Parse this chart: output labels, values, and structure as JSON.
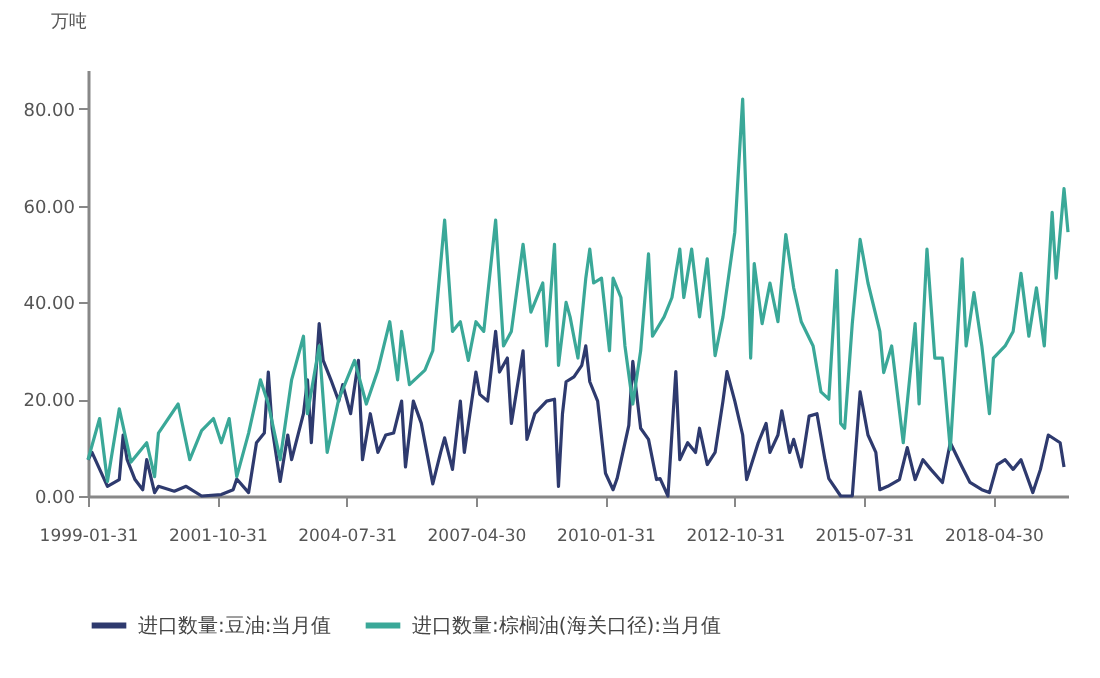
{
  "chart_data": {
    "type": "line",
    "ylabel": "万吨",
    "xlim": [
      "1999-01",
      "2019-11"
    ],
    "xticks": [
      {
        "value": "1999-01",
        "label": "1999-01-31"
      },
      {
        "value": "2001-10",
        "label": "2001-10-31"
      },
      {
        "value": "2004-07",
        "label": "2004-07-31"
      },
      {
        "value": "2007-04",
        "label": "2007-04-30"
      },
      {
        "value": "2010-01",
        "label": "2010-01-31"
      },
      {
        "value": "2012-10",
        "label": "2012-10-31"
      },
      {
        "value": "2015-07",
        "label": "2015-07-31"
      },
      {
        "value": "2018-04",
        "label": "2018-04-30"
      }
    ],
    "ylim": [
      0,
      88
    ],
    "yticks": [
      {
        "value": 0,
        "label": "0.00"
      },
      {
        "value": 20,
        "label": "20.00"
      },
      {
        "value": 40,
        "label": "40.00"
      },
      {
        "value": 60,
        "label": "60.00"
      },
      {
        "value": 80,
        "label": "80.00"
      }
    ],
    "grid": false,
    "legend": "bottom",
    "marker": "none",
    "line_style": "solid",
    "series": [
      {
        "name": "进口数量:豆油:当月值",
        "color": "#2e3a6e",
        "x": [
          "1999-01",
          "1999-02",
          "1999-06",
          "1999-09",
          "1999-10",
          "1999-11",
          "2000-01",
          "2000-03",
          "2000-04",
          "2000-06",
          "2000-07",
          "2000-11",
          "2001-02",
          "2001-06",
          "2001-11",
          "2002-02",
          "2002-03",
          "2002-06",
          "2002-08",
          "2002-10",
          "2002-11",
          "2002-12",
          "2003-02",
          "2003-04",
          "2003-05",
          "2003-08",
          "2003-09",
          "2003-10",
          "2003-12",
          "2004-01",
          "2004-03",
          "2004-05",
          "2004-06",
          "2004-08",
          "2004-10",
          "2004-11",
          "2005-01",
          "2005-03",
          "2005-05",
          "2005-07",
          "2005-09",
          "2005-10",
          "2005-12",
          "2006-02",
          "2006-05",
          "2006-07",
          "2006-08",
          "2006-10",
          "2006-12",
          "2007-01",
          "2007-04",
          "2007-05",
          "2007-07",
          "2007-09",
          "2007-10",
          "2007-12",
          "2008-01",
          "2008-04",
          "2008-05",
          "2008-07",
          "2008-10",
          "2008-12",
          "2009-01",
          "2009-02",
          "2009-03",
          "2009-05",
          "2009-07",
          "2009-08",
          "2009-09",
          "2009-11",
          "2010-01",
          "2010-03",
          "2010-04",
          "2010-07",
          "2010-08",
          "2010-10",
          "2010-12",
          "2011-02",
          "2011-03",
          "2011-05",
          "2011-07",
          "2011-08",
          "2011-10",
          "2011-12",
          "2012-01",
          "2012-03",
          "2012-05",
          "2012-07",
          "2012-08",
          "2012-10",
          "2012-12",
          "2013-01",
          "2013-04",
          "2013-06",
          "2013-07",
          "2013-09",
          "2013-10",
          "2013-12",
          "2014-01",
          "2014-03",
          "2014-05",
          "2014-07",
          "2014-09",
          "2014-10",
          "2015-01",
          "2015-04",
          "2015-06",
          "2015-08",
          "2015-10",
          "2015-11",
          "2016-01",
          "2016-04",
          "2016-06",
          "2016-08",
          "2016-10",
          "2016-12",
          "2017-03",
          "2017-05",
          "2017-08",
          "2017-10",
          "2018-01",
          "2018-03",
          "2018-05",
          "2018-07",
          "2018-09",
          "2018-11",
          "2019-02",
          "2019-04",
          "2019-06",
          "2019-09",
          "2019-10"
        ],
        "values": [
          7.5,
          9,
          2,
          3.4,
          12.6,
          7.5,
          3.4,
          1.3,
          7.5,
          0.7,
          2,
          1,
          2,
          0,
          0.3,
          1.3,
          3.5,
          0.7,
          11,
          13,
          25.6,
          14,
          3,
          12.6,
          7.5,
          17,
          24,
          11,
          35.6,
          28,
          24,
          19.6,
          23,
          17,
          28,
          7.5,
          17,
          9,
          12.6,
          13,
          19.6,
          6,
          19.6,
          15,
          2.5,
          9,
          12,
          5.5,
          19.6,
          9,
          25.6,
          21,
          19.6,
          34,
          25.6,
          28.5,
          15,
          30,
          11.7,
          17,
          19.6,
          20,
          2,
          17,
          23.6,
          24.6,
          27,
          31,
          23.6,
          19.6,
          4.7,
          1.3,
          3.6,
          14.6,
          27.8,
          14,
          11.7,
          3.4,
          3.6,
          0,
          25.7,
          7.5,
          11,
          9,
          14,
          6.5,
          9,
          19.6,
          25.7,
          19.6,
          12.6,
          3.4,
          11,
          15,
          9,
          12.6,
          17.6,
          9,
          11.7,
          6,
          16.5,
          17,
          7.5,
          3.6,
          0,
          0,
          21.5,
          12.6,
          9,
          1.3,
          2,
          3.4,
          10,
          3.4,
          7.5,
          5.5,
          2.8,
          11,
          6,
          2.8,
          1.3,
          0.7,
          6.5,
          7.5,
          5.5,
          7.5,
          0.7,
          5.5,
          12.6,
          11,
          6
        ]
      },
      {
        "name": "进口数量:棕榈油(海关口径):当月值",
        "color": "#3aa898",
        "x": [
          "1999-01",
          "1999-04",
          "1999-06",
          "1999-09",
          "1999-12",
          "2000-04",
          "2000-06",
          "2000-07",
          "2000-12",
          "2001-03",
          "2001-06",
          "2001-09",
          "2001-11",
          "2002-01",
          "2002-03",
          "2002-06",
          "2002-09",
          "2002-11",
          "2003-02",
          "2003-05",
          "2003-08",
          "2003-09",
          "2003-12",
          "2004-02",
          "2004-05",
          "2004-09",
          "2004-12",
          "2005-03",
          "2005-06",
          "2005-08",
          "2005-09",
          "2005-11",
          "2006-03",
          "2006-05",
          "2006-08",
          "2006-10",
          "2006-12",
          "2007-02",
          "2007-04",
          "2007-06",
          "2007-09",
          "2007-11",
          "2008-01",
          "2008-04",
          "2008-06",
          "2008-09",
          "2008-10",
          "2008-12",
          "2009-01",
          "2009-03",
          "2009-04",
          "2009-06",
          "2009-08",
          "2009-09",
          "2009-10",
          "2009-12",
          "2010-02",
          "2010-03",
          "2010-05",
          "2010-06",
          "2010-08",
          "2010-10",
          "2010-12",
          "2011-01",
          "2011-04",
          "2011-06",
          "2011-08",
          "2011-09",
          "2011-11",
          "2012-01",
          "2012-03",
          "2012-05",
          "2012-07",
          "2012-10",
          "2012-12",
          "2013-01",
          "2013-02",
          "2013-03",
          "2013-05",
          "2013-07",
          "2013-09",
          "2013-11",
          "2014-01",
          "2014-03",
          "2014-06",
          "2014-08",
          "2014-10",
          "2014-12",
          "2015-01",
          "2015-02",
          "2015-04",
          "2015-06",
          "2015-08",
          "2015-11",
          "2015-12",
          "2016-02",
          "2016-05",
          "2016-08",
          "2016-09",
          "2016-11",
          "2017-01",
          "2017-03",
          "2017-05",
          "2017-08",
          "2017-09",
          "2017-11",
          "2018-01",
          "2018-03",
          "2018-04",
          "2018-07",
          "2018-09",
          "2018-11",
          "2019-01",
          "2019-03",
          "2019-05",
          "2019-07",
          "2019-08",
          "2019-10",
          "2019-11"
        ],
        "values": [
          7.5,
          16,
          3,
          18,
          7,
          11,
          4,
          13,
          19,
          7.5,
          13.5,
          16,
          11,
          16,
          4,
          13,
          24,
          19,
          7.5,
          24,
          33,
          17,
          31,
          9,
          20,
          28,
          19,
          26,
          36,
          24,
          34,
          23,
          26,
          30,
          57,
          34,
          36,
          28,
          36,
          34,
          57,
          31,
          34,
          52,
          38,
          44,
          31,
          52,
          27,
          40,
          37,
          28.5,
          45,
          51,
          44,
          45,
          30,
          45,
          41,
          31,
          19,
          30,
          50,
          33,
          37,
          41,
          51,
          41,
          51,
          37,
          49,
          29,
          37,
          54.5,
          82,
          58,
          28.5,
          48,
          35.6,
          44,
          36,
          54,
          43,
          36,
          31,
          21.5,
          20,
          46.6,
          15,
          14,
          35.6,
          53,
          44,
          34,
          25.5,
          31,
          11,
          35.6,
          19,
          51,
          28.5,
          28.5,
          9.6,
          49,
          31,
          42,
          31,
          17,
          28.5,
          31,
          34,
          46,
          33,
          43,
          31,
          58.6,
          45,
          63.5,
          54.5
        ]
      }
    ]
  }
}
